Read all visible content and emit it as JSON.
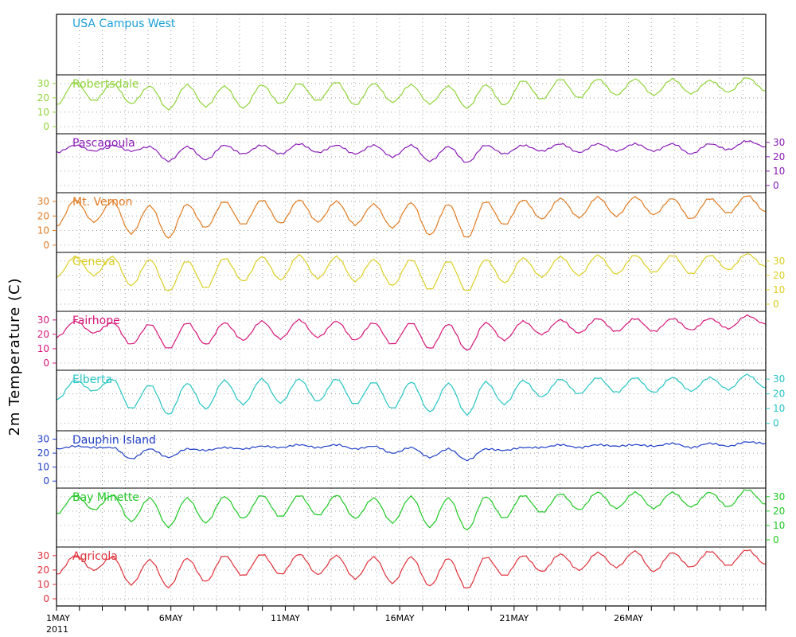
{
  "chart_data": {
    "type": "line",
    "ylabel": "2m Temperature (C)",
    "x_ticks": [
      "1MAY",
      "6MAY",
      "11MAY",
      "16MAY",
      "21MAY",
      "26MAY"
    ],
    "x_year": "2011",
    "x_range_days": [
      1,
      32
    ],
    "y_ticks": [
      0,
      10,
      20,
      30
    ],
    "ylim": [
      -5,
      36
    ],
    "grid": true,
    "panels": [
      {
        "name": "USA Campus West",
        "color": "#1ba0d8",
        "axis": "none",
        "values": []
      },
      {
        "name": "Robertsdale",
        "color": "#8fd43a",
        "axis": "left",
        "values": [
          15,
          31,
          18,
          30,
          16,
          28,
          12,
          29,
          14,
          28,
          13,
          29,
          16,
          30,
          18,
          31,
          15,
          30,
          17,
          29,
          16,
          28,
          13,
          29,
          15,
          32,
          19,
          33,
          20,
          33,
          22,
          33,
          22,
          33,
          23,
          32,
          24,
          34,
          25
        ]
      },
      {
        "name": "Pascagoula",
        "color": "#8a1cb8",
        "axis": "right",
        "values": [
          23,
          28,
          24,
          28,
          24,
          27,
          17,
          27,
          18,
          28,
          22,
          28,
          22,
          29,
          23,
          28,
          22,
          28,
          20,
          28,
          17,
          27,
          16,
          28,
          22,
          28,
          24,
          29,
          23,
          29,
          24,
          29,
          24,
          29,
          22,
          29,
          25,
          31,
          27
        ]
      },
      {
        "name": "Mt. Vernon",
        "color": "#e07b21",
        "axis": "left",
        "values": [
          13,
          31,
          16,
          30,
          8,
          27,
          5,
          28,
          12,
          30,
          14,
          31,
          15,
          31,
          16,
          30,
          14,
          28,
          12,
          29,
          7,
          28,
          5,
          30,
          14,
          31,
          18,
          32,
          19,
          33,
          20,
          33,
          21,
          32,
          18,
          32,
          22,
          34,
          23
        ]
      },
      {
        "name": "Geneva",
        "color": "#dccf23",
        "axis": "right",
        "values": [
          19,
          33,
          20,
          33,
          13,
          31,
          9,
          30,
          11,
          32,
          16,
          33,
          17,
          34,
          18,
          33,
          16,
          31,
          13,
          31,
          10,
          30,
          9,
          31,
          15,
          32,
          19,
          33,
          20,
          34,
          21,
          34,
          22,
          34,
          21,
          34,
          24,
          35,
          26
        ]
      },
      {
        "name": "Fairhope",
        "color": "#d6177a",
        "axis": "left",
        "values": [
          18,
          29,
          21,
          28,
          13,
          27,
          10,
          28,
          13,
          28,
          16,
          29,
          17,
          30,
          18,
          29,
          16,
          28,
          13,
          28,
          10,
          27,
          9,
          28,
          16,
          29,
          20,
          30,
          21,
          31,
          22,
          31,
          22,
          31,
          23,
          31,
          24,
          33,
          27
        ]
      },
      {
        "name": "Elberta",
        "color": "#25c4c4",
        "axis": "right",
        "values": [
          16,
          29,
          22,
          30,
          10,
          26,
          6,
          27,
          10,
          29,
          13,
          30,
          14,
          30,
          15,
          30,
          13,
          28,
          10,
          28,
          8,
          27,
          6,
          28,
          13,
          29,
          18,
          30,
          20,
          31,
          21,
          31,
          21,
          31,
          22,
          31,
          23,
          33,
          24
        ]
      },
      {
        "name": "Dauphin Island",
        "color": "#1f3fc8",
        "axis": "left",
        "values": [
          23,
          25,
          24,
          24,
          16,
          23,
          17,
          23,
          22,
          24,
          23,
          25,
          24,
          26,
          24,
          26,
          23,
          25,
          20,
          24,
          17,
          23,
          15,
          23,
          22,
          24,
          24,
          26,
          24,
          26,
          25,
          26,
          25,
          27,
          24,
          27,
          25,
          28,
          27
        ]
      },
      {
        "name": "Bay Minette",
        "color": "#1ec823",
        "axis": "right",
        "values": [
          18,
          31,
          21,
          31,
          13,
          29,
          9,
          29,
          12,
          30,
          15,
          31,
          16,
          31,
          17,
          31,
          15,
          29,
          12,
          30,
          9,
          29,
          7,
          30,
          15,
          31,
          19,
          32,
          21,
          33,
          22,
          33,
          22,
          33,
          23,
          33,
          23,
          35,
          25
        ]
      },
      {
        "name": "Agricola",
        "color": "#e0313a",
        "axis": "left",
        "values": [
          17,
          30,
          20,
          29,
          10,
          27,
          8,
          28,
          12,
          30,
          16,
          31,
          17,
          31,
          17,
          30,
          14,
          29,
          11,
          29,
          9,
          28,
          7,
          29,
          16,
          30,
          19,
          31,
          20,
          32,
          22,
          33,
          19,
          32,
          22,
          33,
          23,
          34,
          24
        ]
      }
    ]
  }
}
